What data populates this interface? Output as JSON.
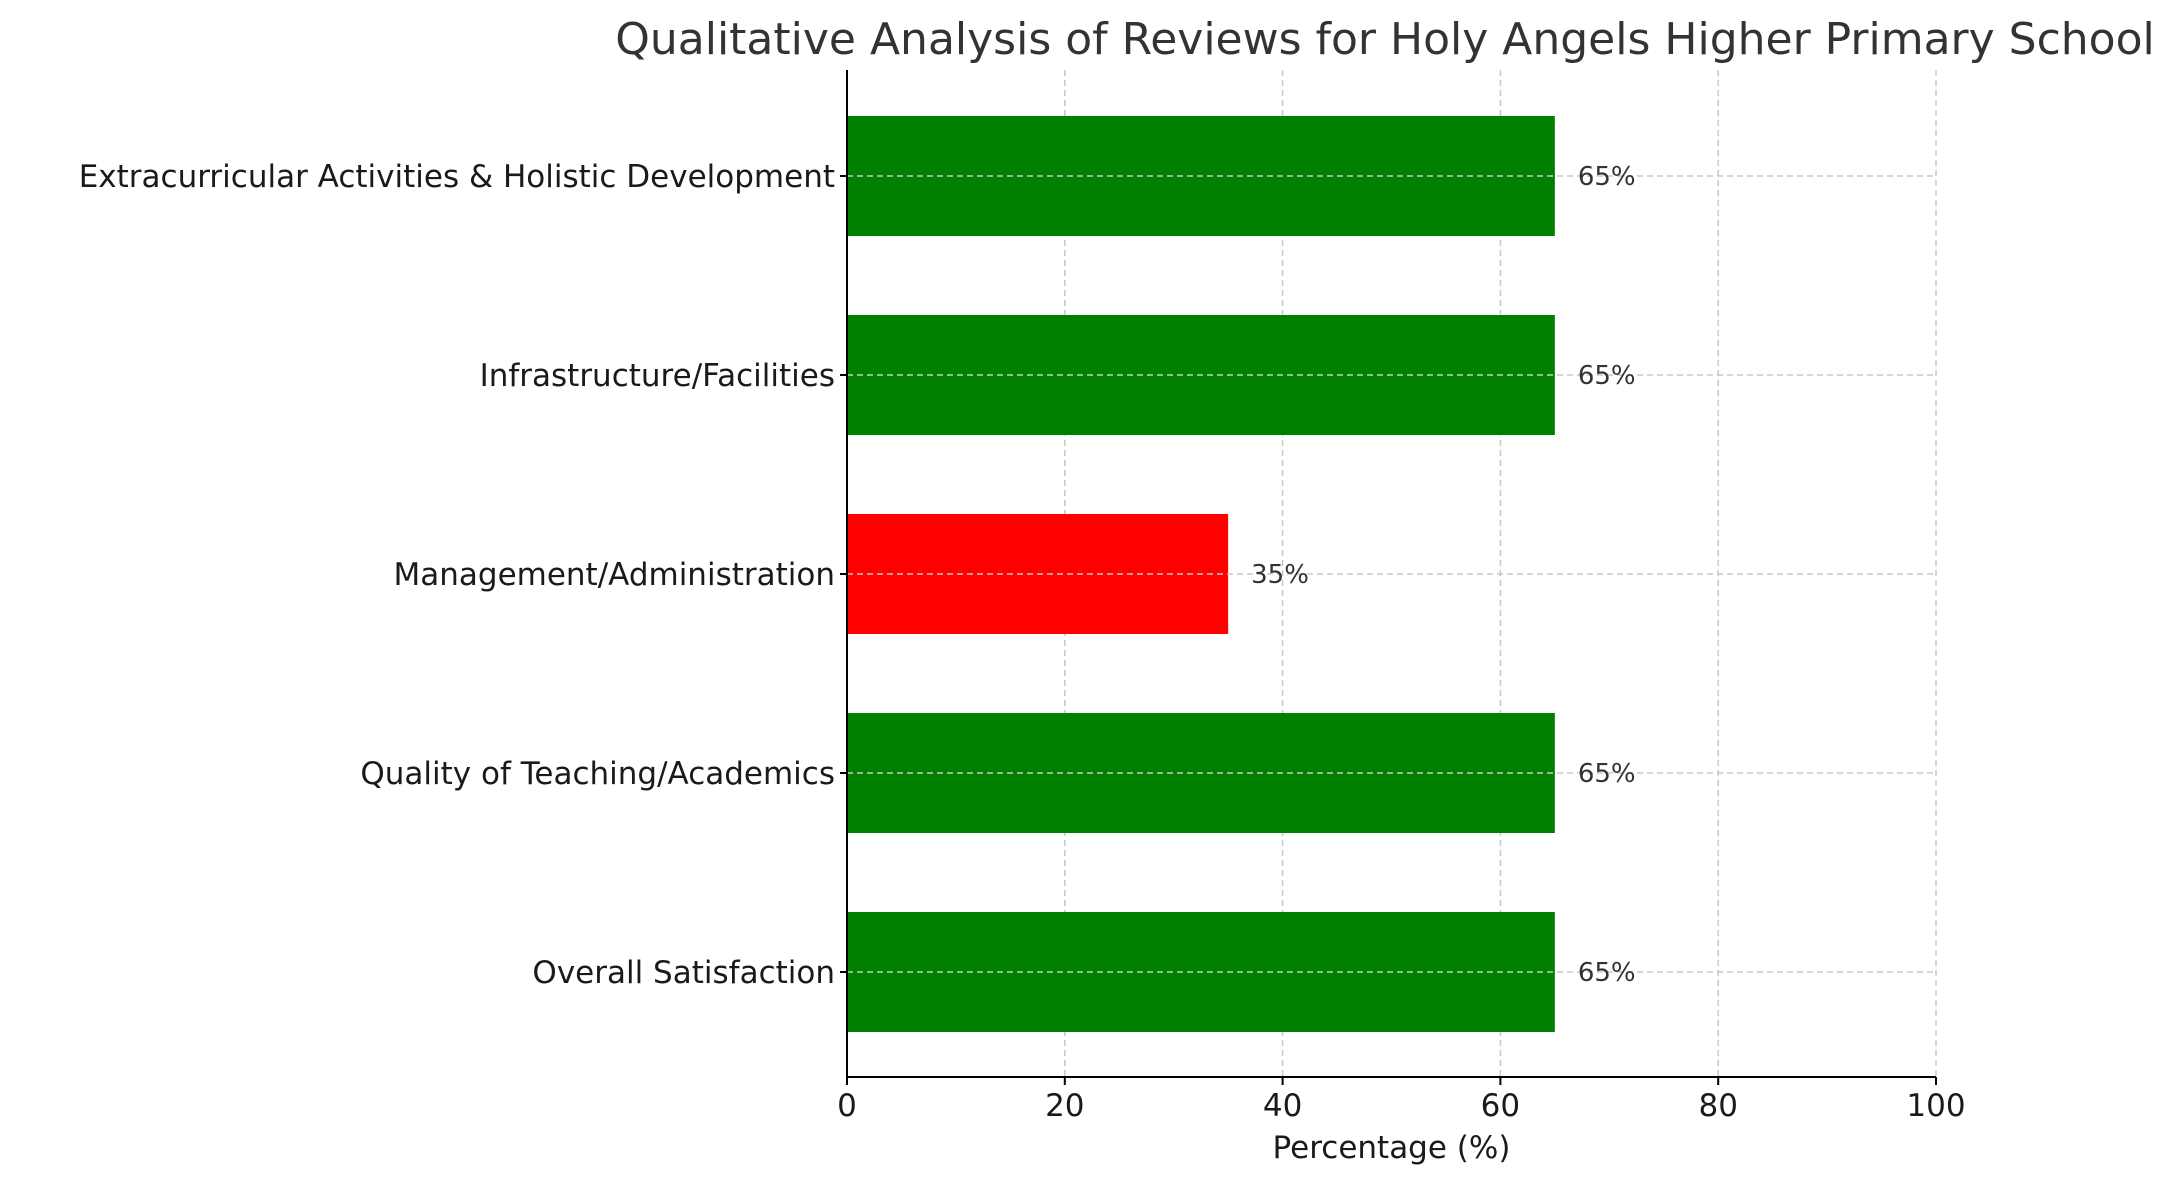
{
  "chart_data": {
    "type": "bar",
    "orientation": "horizontal",
    "title": "Qualitative Analysis of Reviews for Holy Angels Higher Primary School",
    "xlabel": "Percentage (%)",
    "ylabel": "",
    "xlim": [
      0,
      100
    ],
    "xticks": [
      0,
      20,
      40,
      60,
      80,
      100
    ],
    "grid": true,
    "categories": [
      "Overall Satisfaction",
      "Quality of Teaching/Academics",
      "Management/Administration",
      "Infrastructure/Facilities",
      "Extracurricular Activities & Holistic Development"
    ],
    "values": [
      65,
      65,
      35,
      65,
      65
    ],
    "value_labels": [
      "65%",
      "65%",
      "35%",
      "65%",
      "65%"
    ],
    "colors": [
      "#008000",
      "#008000",
      "#ff0000",
      "#008000",
      "#008000"
    ]
  }
}
